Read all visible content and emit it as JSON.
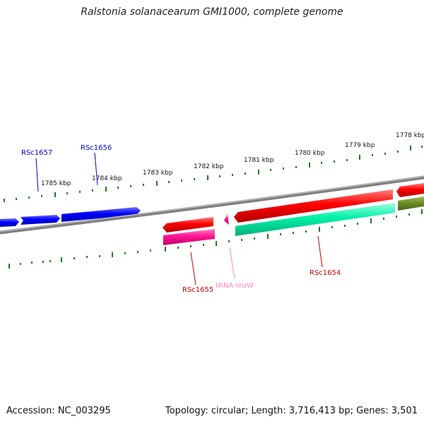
{
  "title": "Ralstonia solanacearum GMI1000, complete genome",
  "footer": {
    "accession": "Accession: NC_003295",
    "summary": "Topology: circular; Length: 3,716,413 bp; Genes: 3,501"
  },
  "scale": {
    "units": "kbp",
    "labels": [
      "1778 kbp",
      "1779 kbp",
      "1780 kbp",
      "1781 kbp",
      "1782 kbp",
      "1783 kbp",
      "1784 kbp",
      "1785 kbp"
    ],
    "tick_color": "#1f7a1f"
  },
  "backbone_color": "#808080",
  "features": [
    {
      "name": "RSc1657",
      "strand": "+",
      "label": "RSc1657",
      "color": "#0000ff",
      "label_color": "#0000cc"
    },
    {
      "name": "RSc1656",
      "strand": "+",
      "label": "RSc1656",
      "color": "#0000ff",
      "label_color": "#0000cc"
    },
    {
      "name": "RSc1655",
      "strand": "-",
      "label": "RSc1655",
      "color": "#ff0000",
      "label_color": "#cc0000"
    },
    {
      "name": "RSc1655-cds",
      "strand": "-",
      "label": "",
      "color": "#ff1493"
    },
    {
      "name": "tRNA-leuW",
      "strand": "-",
      "label": "tRNA-leuW",
      "color": "#ff99cc",
      "label_color": "#ff88bb"
    },
    {
      "name": "RSc1654",
      "strand": "-",
      "label": "RSc1654",
      "color": "#ff0000",
      "label_color": "#cc0000"
    },
    {
      "name": "RSc1654-cds",
      "strand": "-",
      "label": "",
      "color": "#00ffaa"
    },
    {
      "name": "next-gene",
      "strand": "-",
      "label": "",
      "color": "#ff0000"
    },
    {
      "name": "next-gene-cds",
      "strand": "-",
      "label": "",
      "color": "#6b8e23"
    }
  ]
}
